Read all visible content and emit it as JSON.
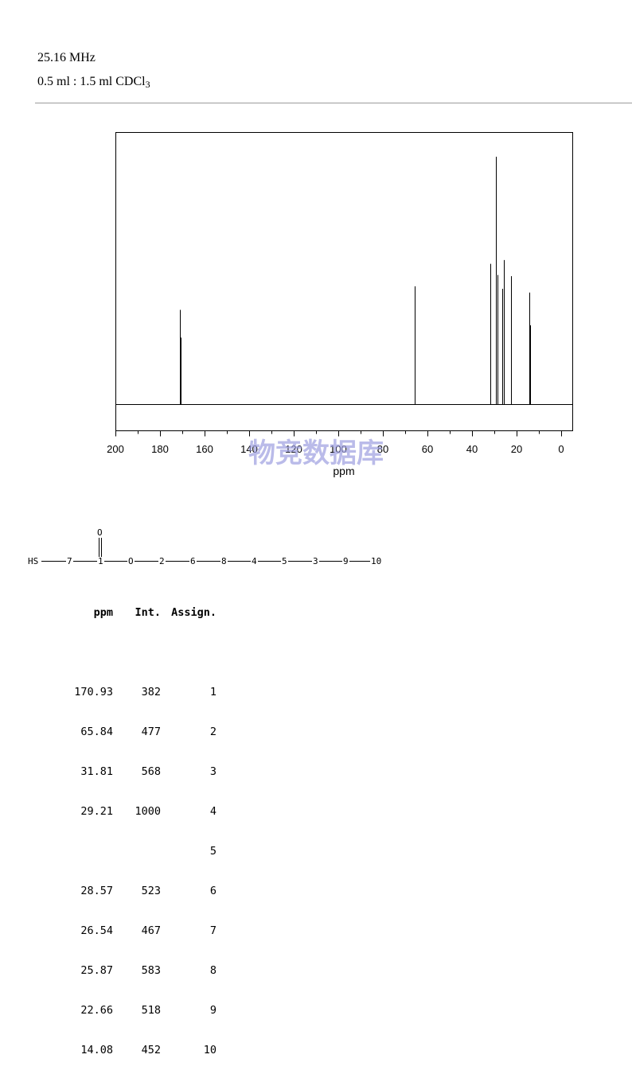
{
  "header": {
    "frequency": "25.16 MHz",
    "solvent_main": "0.5 ml : 1.5 ml CDCl",
    "solvent_sub": "3"
  },
  "chart_data": {
    "type": "line",
    "xlabel": "ppm",
    "xlim": [
      200,
      -5
    ],
    "xticks": [
      200,
      180,
      160,
      140,
      120,
      100,
      80,
      60,
      40,
      20,
      0
    ],
    "ylim": [
      0,
      1000
    ],
    "grid": false,
    "peaks": [
      {
        "ppm": 171.05,
        "intensity": 382
      },
      {
        "ppm": 170.85,
        "intensity": 270
      },
      {
        "ppm": 65.84,
        "intensity": 477
      },
      {
        "ppm": 31.81,
        "intensity": 568
      },
      {
        "ppm": 29.21,
        "intensity": 1000
      },
      {
        "ppm": 28.57,
        "intensity": 523
      },
      {
        "ppm": 26.54,
        "intensity": 467
      },
      {
        "ppm": 25.87,
        "intensity": 583
      },
      {
        "ppm": 22.66,
        "intensity": 518
      },
      {
        "ppm": 14.2,
        "intensity": 452
      },
      {
        "ppm": 13.95,
        "intensity": 320
      }
    ]
  },
  "watermark": "物竞数据库",
  "molecule": {
    "labels": [
      "HS",
      "7",
      "1",
      "O",
      "2",
      "6",
      "8",
      "4",
      "5",
      "3",
      "9",
      "10"
    ],
    "top_label": "O"
  },
  "table": {
    "headers": {
      "ppm": "ppm",
      "int": "Int.",
      "assign": "Assign."
    },
    "rows": [
      {
        "ppm": "170.93",
        "int": "382",
        "assign": "1"
      },
      {
        "ppm": "65.84",
        "int": "477",
        "assign": "2"
      },
      {
        "ppm": "31.81",
        "int": "568",
        "assign": "3"
      },
      {
        "ppm": "29.21",
        "int": "1000",
        "assign": "4"
      },
      {
        "ppm": "",
        "int": "",
        "assign": "5"
      },
      {
        "ppm": "28.57",
        "int": "523",
        "assign": "6"
      },
      {
        "ppm": "26.54",
        "int": "467",
        "assign": "7"
      },
      {
        "ppm": "25.87",
        "int": "583",
        "assign": "8"
      },
      {
        "ppm": "22.66",
        "int": "518",
        "assign": "9"
      },
      {
        "ppm": "14.08",
        "int": "452",
        "assign": "10"
      }
    ]
  }
}
